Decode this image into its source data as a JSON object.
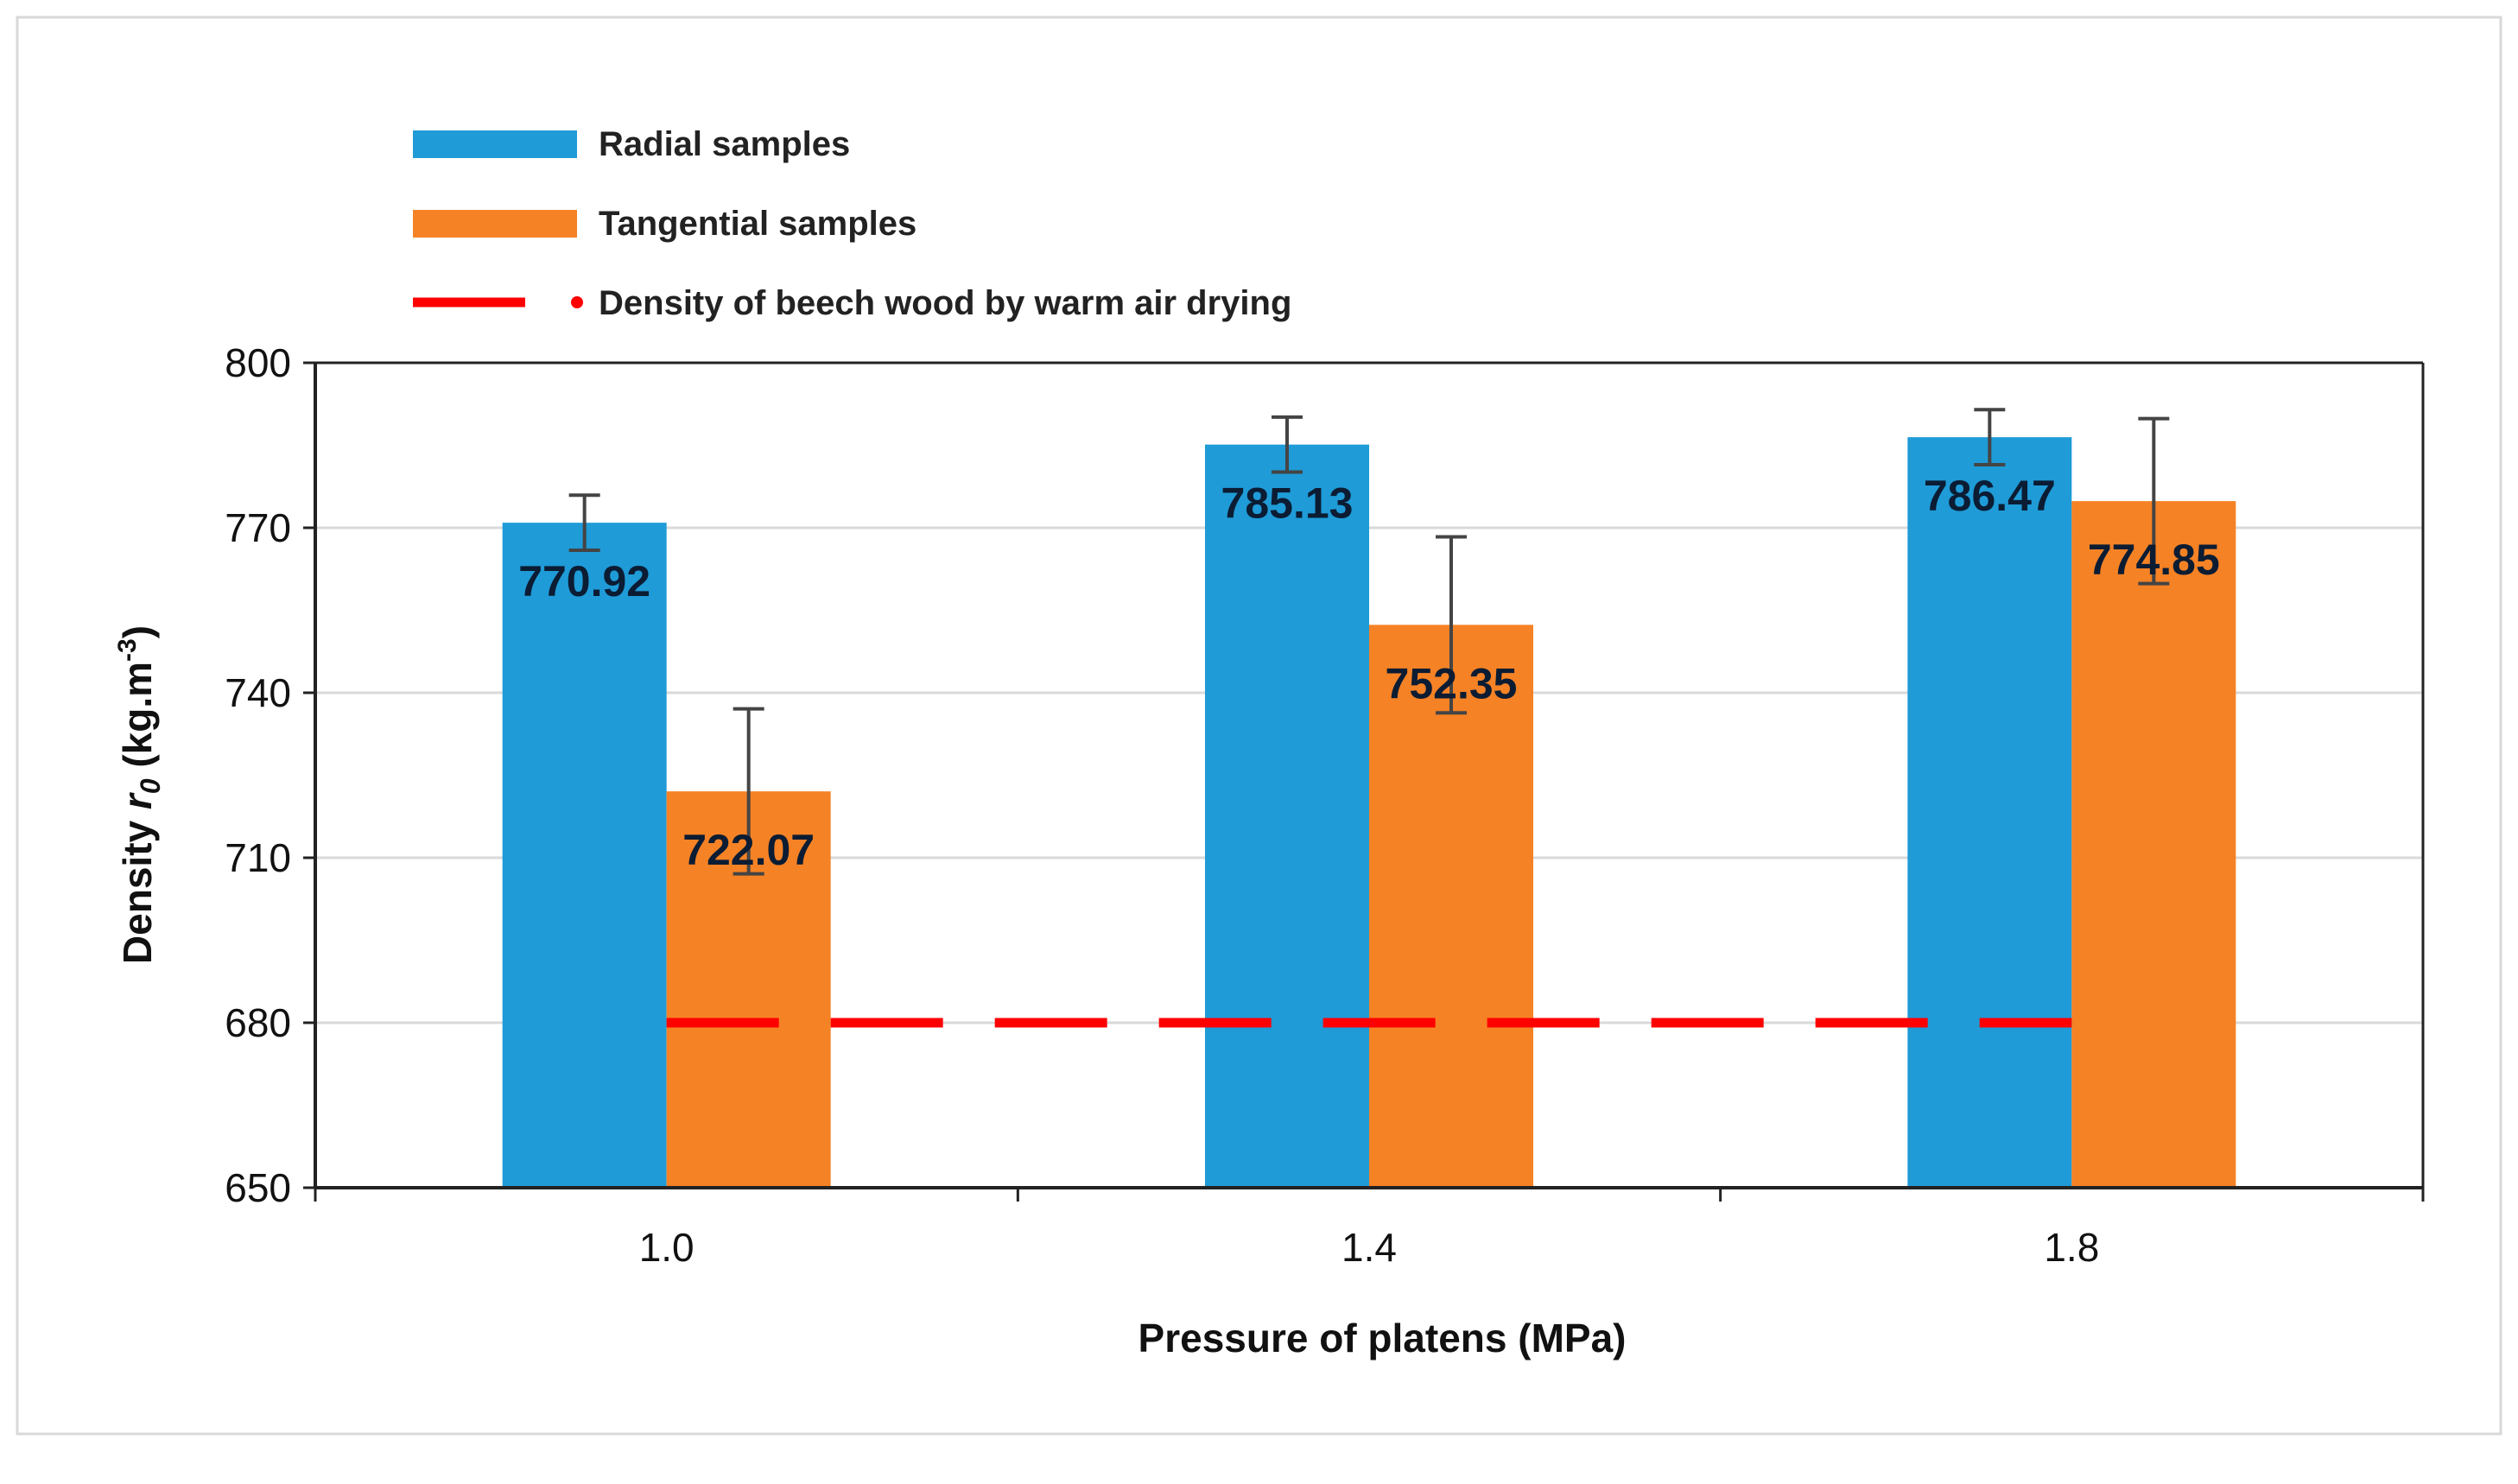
{
  "chart_data": {
    "type": "bar",
    "categories": [
      "1.0",
      "1.4",
      "1.8"
    ],
    "series": [
      {
        "name": "Radial samples",
        "color": "#1f9bd7",
        "values": [
          770.92,
          785.13,
          786.47
        ],
        "error": [
          5,
          5,
          5
        ],
        "labels": [
          "770.92",
          "785.13",
          "786.47"
        ]
      },
      {
        "name": "Tangential samples",
        "color": "#f58225",
        "values": [
          722.07,
          752.35,
          774.85
        ],
        "error": [
          15,
          16,
          15
        ],
        "labels": [
          "722.07",
          "752.35",
          "774.85"
        ]
      }
    ],
    "reference_line": {
      "name": "Density of beech wood by warm air drying",
      "value": 680,
      "color": "#ff0000",
      "style": "dashed"
    },
    "xlabel": "Pressure of  platens (MPa)",
    "ylabel_main": "Density ",
    "ylabel_symbol": "r",
    "ylabel_subscript": "0",
    "ylabel_unit": " (kg.m",
    "ylabel_unit_sup": "-3",
    "ylabel_unit_end": ")",
    "ylim": [
      650,
      800
    ],
    "yticks": [
      650,
      680,
      710,
      740,
      770,
      800
    ],
    "grid": true,
    "legend_position": "top-left"
  }
}
